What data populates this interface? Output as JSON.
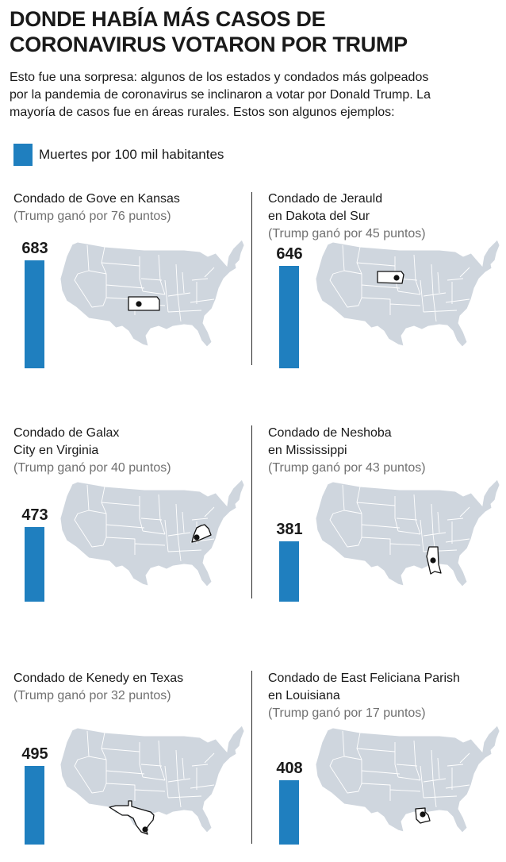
{
  "title": {
    "line1": "DONDE HABÍA MÁS CASOS DE",
    "line2": "CORONAVIRUS VOTARON POR TRUMP"
  },
  "intro": {
    "line1": "Esto fue una sorpresa: algunos de los estados y condados más golpeados",
    "line2": "por la pandemia de coronavirus se inclinaron a votar por Donald Trump. La",
    "line3": "mayoría de casos fue en áreas rurales. Estos son algunos ejemplos:"
  },
  "legend": {
    "label": "Muertes por 100 mil habitantes",
    "color": "#1f7fbf"
  },
  "colors": {
    "bar": "#1f7fbf",
    "map_fill": "#cfd6de",
    "highlight_fill": "#ffffff",
    "highlight_stroke": "#111111",
    "subtitle": "#707070"
  },
  "chart_data": {
    "type": "bar",
    "ylabel": "Muertes por 100 mil habitantes",
    "categories": [
      "Condado de Gove en Kansas",
      "Condado de Jerauld en Dakota del Sur",
      "Condado de Galax City en Virginia",
      "Condado de Neshoba en Mississippi",
      "Condado de Kenedy en Texas",
      "Condado de East Feliciana Parish en Louisiana"
    ],
    "values": [
      683,
      646,
      473,
      381,
      495,
      408
    ],
    "panels": [
      {
        "title_lines": [
          "Condado de Gove en Kansas"
        ],
        "subtitle": "(Trump ganó por 76 puntos)",
        "value": 683,
        "value_label": "683",
        "state": "kansas"
      },
      {
        "title_lines": [
          "Condado de Jerauld",
          "en Dakota del Sur"
        ],
        "subtitle": "(Trump ganó por 45 puntos)",
        "value": 646,
        "value_label": "646",
        "state": "south-dakota"
      },
      {
        "title_lines": [
          "Condado de Galax",
          "City en Virginia"
        ],
        "subtitle": "(Trump ganó por 40 puntos)",
        "value": 473,
        "value_label": "473",
        "state": "virginia"
      },
      {
        "title_lines": [
          "Condado de Neshoba",
          "en Mississippi"
        ],
        "subtitle": "(Trump ganó por 43 puntos)",
        "value": 381,
        "value_label": "381",
        "state": "mississippi"
      },
      {
        "title_lines": [
          "Condado de Kenedy en Texas"
        ],
        "subtitle": "(Trump ganó por 32 puntos)",
        "value": 495,
        "value_label": "495",
        "state": "texas"
      },
      {
        "title_lines": [
          "Condado de East Feliciana Parish",
          "en Louisiana"
        ],
        "subtitle": "(Trump ganó por 17 puntos)",
        "value": 408,
        "value_label": "408",
        "state": "louisiana"
      }
    ]
  }
}
